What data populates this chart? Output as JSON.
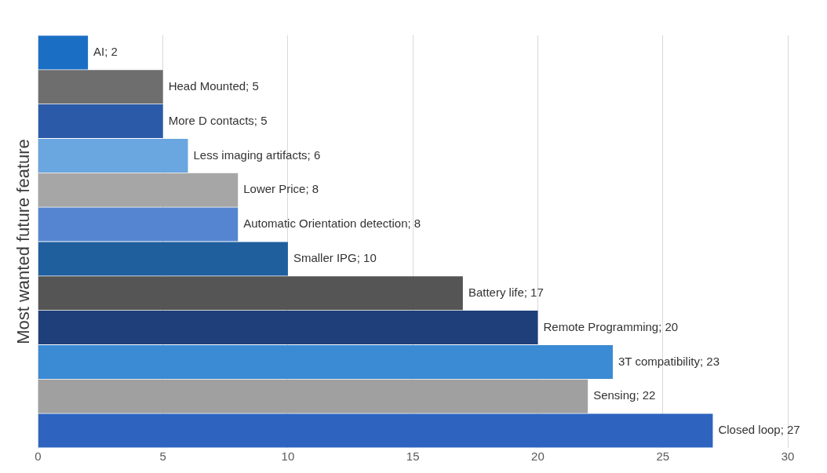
{
  "chart_data": {
    "type": "bar",
    "orientation": "horizontal",
    "ylabel": "Most wanted future feature",
    "categories": [
      null,
      null,
      null,
      null,
      null,
      null,
      null,
      null,
      null,
      null,
      null,
      null
    ],
    "values": [
      2,
      5,
      5,
      6,
      8,
      8,
      10,
      17,
      20,
      23,
      22,
      27
    ],
    "value_labels": [
      "AI; 2",
      "Head Mounted; 5",
      "More D contacts; 5",
      "Less imaging artifacts; 6",
      "Lower Price; 8",
      "Automatic Orientation detection; 8",
      "Smaller IPG; 10",
      "Battery life; 17",
      "Remote Programming; 20",
      "3T compatibility; 23",
      "Sensing; 22",
      "Closed loop; 27"
    ],
    "colors": [
      "#1a6fc4",
      "#6e6e6e",
      "#2a5aa8",
      "#6aa6e0",
      "#a6a6a6",
      "#5585d0",
      "#1f5f9e",
      "#555555",
      "#1f3f7a",
      "#3a8ad4",
      "#a0a0a0",
      "#2e64c0"
    ],
    "xlim": [
      0,
      30
    ],
    "xticks": [
      0,
      5,
      10,
      15,
      20,
      25,
      30
    ],
    "grid": "x",
    "tick_labels": "x"
  }
}
